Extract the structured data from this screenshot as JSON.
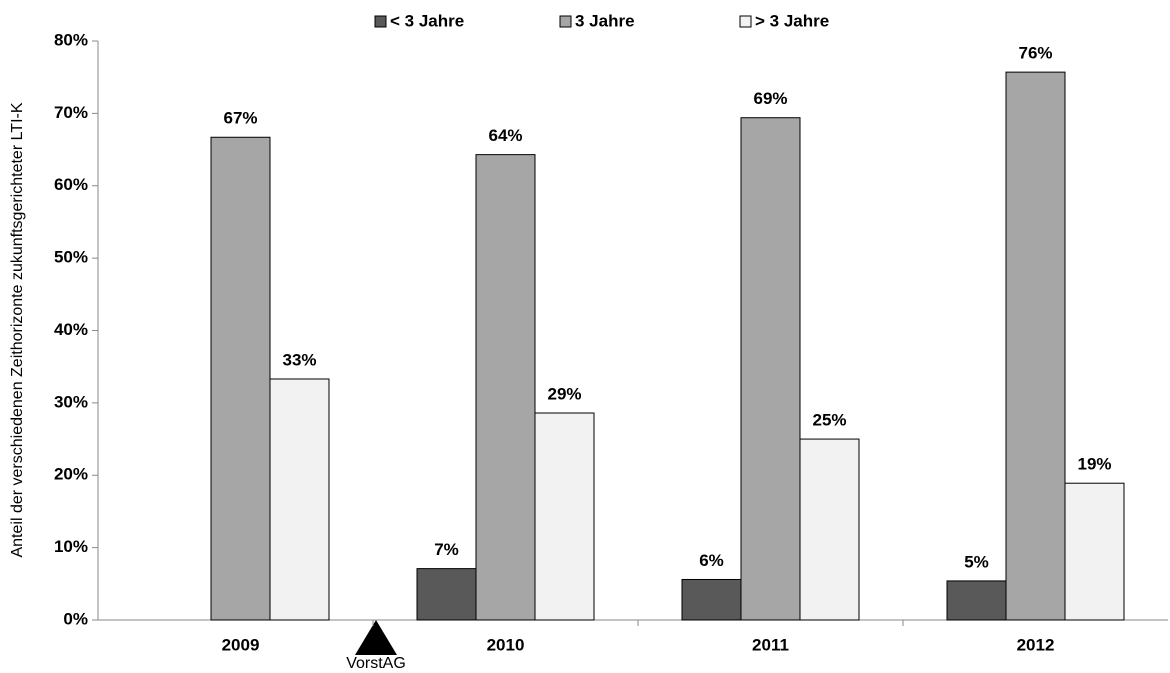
{
  "chart_data": {
    "type": "bar",
    "y_label": "Anteil der verschiedenen Zeithorizonte zukunftsgerichteter LTI-K",
    "categories": [
      "2009",
      "2010",
      "2011",
      "2012"
    ],
    "series": [
      {
        "name": "< 3 Jahre",
        "color": "#595959",
        "values": [
          null,
          7.1,
          5.6,
          5.4
        ],
        "value_labels": [
          null,
          "7%",
          "6%",
          "5%"
        ]
      },
      {
        "name": "3 Jahre",
        "color": "#a6a6a6",
        "values": [
          66.7,
          64.3,
          69.4,
          75.7
        ],
        "value_labels": [
          "67%",
          "64%",
          "69%",
          "76%"
        ]
      },
      {
        "name": "> 3 Jahre",
        "color": "#f2f2f2",
        "values": [
          33.3,
          28.6,
          25.0,
          18.9
        ],
        "value_labels": [
          "33%",
          "29%",
          "25%",
          "19%"
        ]
      }
    ],
    "ylim": [
      0,
      80
    ],
    "yticks": [
      {
        "value": 0,
        "label": "0%"
      },
      {
        "value": 10,
        "label": "10%"
      },
      {
        "value": 20,
        "label": "20%"
      },
      {
        "value": 30,
        "label": "30%"
      },
      {
        "value": 40,
        "label": "40%"
      },
      {
        "value": 50,
        "label": "50%"
      },
      {
        "value": 60,
        "label": "60%"
      },
      {
        "value": 70,
        "label": "70%"
      },
      {
        "value": 80,
        "label": "80%"
      }
    ],
    "annotation": "VorstAG",
    "legend": "top"
  }
}
